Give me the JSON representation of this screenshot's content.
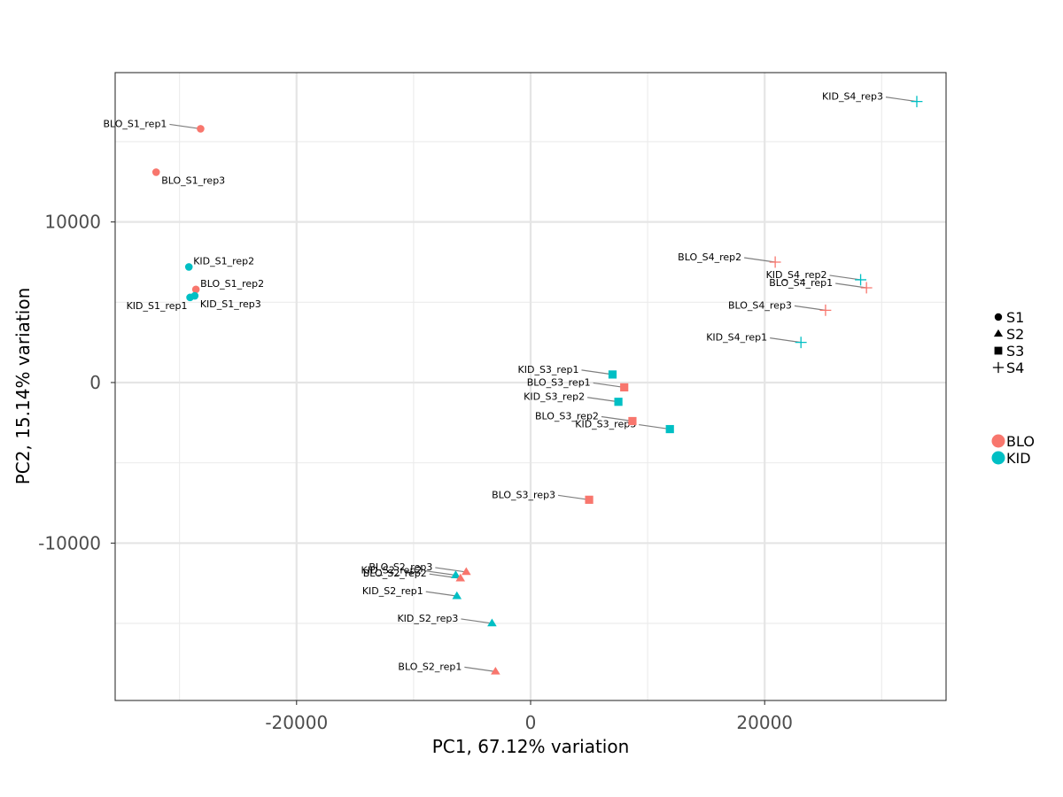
{
  "chart_data": {
    "type": "scatter",
    "xlabel": "PC1, 67.12% variation",
    "ylabel": "PC2, 15.14% variation",
    "xlim": [
      -35500,
      35500
    ],
    "ylim": [
      -19800,
      19300
    ],
    "x_ticks": [
      {
        "value": -20000,
        "label": "-20000"
      },
      {
        "value": 0,
        "label": "0"
      },
      {
        "value": 20000,
        "label": "20000"
      }
    ],
    "y_ticks": [
      {
        "value": -10000,
        "label": "-10000"
      },
      {
        "value": 0,
        "label": "0"
      },
      {
        "value": 10000,
        "label": "10000"
      }
    ],
    "grid": true,
    "legend_position": "right",
    "shape_legend": [
      {
        "name": "S1",
        "shape": "circle"
      },
      {
        "name": "S2",
        "shape": "triangle"
      },
      {
        "name": "S3",
        "shape": "square"
      },
      {
        "name": "S4",
        "shape": "plus"
      }
    ],
    "color_legend": [
      {
        "name": "BLO",
        "color": "#F8766D"
      },
      {
        "name": "KID",
        "color": "#00BFC4"
      }
    ],
    "points": [
      {
        "label": "BLO_S1_rep1",
        "x": -28200,
        "y": 15800,
        "group": "BLO",
        "stage": "S1",
        "label_side": "left"
      },
      {
        "label": "BLO_S1_rep3",
        "x": -32000,
        "y": 13100,
        "group": "BLO",
        "stage": "S1",
        "label_side": "below-right"
      },
      {
        "label": "KID_S1_rep2",
        "x": -29200,
        "y": 7200,
        "group": "KID",
        "stage": "S1",
        "label_side": "above-right"
      },
      {
        "label": "BLO_S1_rep2",
        "x": -28600,
        "y": 5800,
        "group": "BLO",
        "stage": "S1",
        "label_side": "above-right"
      },
      {
        "label": "KID_S1_rep1",
        "x": -29100,
        "y": 5300,
        "group": "KID",
        "stage": "S1",
        "label_side": "below-left"
      },
      {
        "label": "KID_S1_rep3",
        "x": -28700,
        "y": 5400,
        "group": "KID",
        "stage": "S1",
        "label_side": "below-right"
      },
      {
        "label": "KID_S4_rep3",
        "x": 33000,
        "y": 17500,
        "group": "KID",
        "stage": "S4",
        "label_side": "left"
      },
      {
        "label": "BLO_S4_rep2",
        "x": 20900,
        "y": 7500,
        "group": "BLO",
        "stage": "S4",
        "label_side": "left"
      },
      {
        "label": "KID_S4_rep2",
        "x": 28200,
        "y": 6400,
        "group": "KID",
        "stage": "S4",
        "label_side": "left"
      },
      {
        "label": "BLO_S4_rep1",
        "x": 28700,
        "y": 5900,
        "group": "BLO",
        "stage": "S4",
        "label_side": "left"
      },
      {
        "label": "BLO_S4_rep3",
        "x": 25200,
        "y": 4500,
        "group": "BLO",
        "stage": "S4",
        "label_side": "left"
      },
      {
        "label": "KID_S4_rep1",
        "x": 23100,
        "y": 2500,
        "group": "KID",
        "stage": "S4",
        "label_side": "left"
      },
      {
        "label": "KID_S3_rep1",
        "x": 7000,
        "y": 500,
        "group": "KID",
        "stage": "S3",
        "label_side": "left"
      },
      {
        "label": "BLO_S3_rep1",
        "x": 8000,
        "y": -300,
        "group": "BLO",
        "stage": "S3",
        "label_side": "left"
      },
      {
        "label": "KID_S3_rep2",
        "x": 7500,
        "y": -1200,
        "group": "KID",
        "stage": "S3",
        "label_side": "left"
      },
      {
        "label": "BLO_S3_rep2",
        "x": 8700,
        "y": -2400,
        "group": "BLO",
        "stage": "S3",
        "label_side": "left"
      },
      {
        "label": "KID_S3_rep3",
        "x": 11900,
        "y": -2900,
        "group": "KID",
        "stage": "S3",
        "label_side": "left"
      },
      {
        "label": "BLO_S3_rep3",
        "x": 5000,
        "y": -7300,
        "group": "BLO",
        "stage": "S3",
        "label_side": "left"
      },
      {
        "label": "KID_S2_rep2",
        "x": -6400,
        "y": -12000,
        "group": "KID",
        "stage": "S2",
        "label_side": "left"
      },
      {
        "label": "BLO_S2_rep3",
        "x": -5500,
        "y": -11800,
        "group": "BLO",
        "stage": "S2",
        "label_side": "left"
      },
      {
        "label": "BLO_S2_rep2",
        "x": -6000,
        "y": -12200,
        "group": "BLO",
        "stage": "S2",
        "label_side": "left"
      },
      {
        "label": "KID_S2_rep1",
        "x": -6300,
        "y": -13300,
        "group": "KID",
        "stage": "S2",
        "label_side": "left"
      },
      {
        "label": "KID_S2_rep3",
        "x": -3300,
        "y": -15000,
        "group": "KID",
        "stage": "S2",
        "label_side": "left"
      },
      {
        "label": "BLO_S2_rep1",
        "x": -3000,
        "y": -18000,
        "group": "BLO",
        "stage": "S2",
        "label_side": "left"
      }
    ]
  }
}
